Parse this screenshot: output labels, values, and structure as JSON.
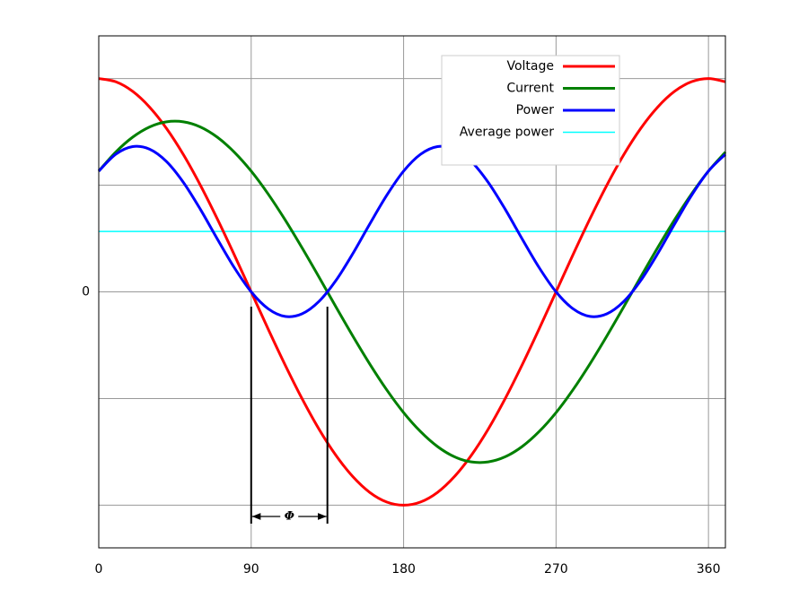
{
  "chart_data": {
    "type": "line",
    "x": [
      0,
      10,
      20,
      30,
      40,
      50,
      60,
      70,
      80,
      90,
      100,
      110,
      120,
      130,
      140,
      150,
      160,
      170,
      180,
      190,
      200,
      210,
      220,
      230,
      240,
      250,
      260,
      270,
      280,
      290,
      300,
      310,
      320,
      330,
      340,
      350,
      360,
      370
    ],
    "series": [
      {
        "name": "Voltage",
        "color": "#ff0000",
        "values": [
          1,
          0.985,
          0.94,
          0.866,
          0.766,
          0.643,
          0.5,
          0.342,
          0.174,
          0,
          -0.174,
          -0.342,
          -0.5,
          -0.643,
          -0.766,
          -0.866,
          -0.94,
          -0.985,
          -1,
          -0.985,
          -0.94,
          -0.866,
          -0.766,
          -0.643,
          -0.5,
          -0.342,
          -0.174,
          0,
          0.174,
          0.342,
          0.5,
          0.643,
          0.766,
          0.866,
          0.94,
          0.985,
          1,
          0.985
        ]
      },
      {
        "name": "Current",
        "color": "#008000",
        "values": [
          0.566,
          0.655,
          0.725,
          0.773,
          0.797,
          0.797,
          0.773,
          0.725,
          0.655,
          0.566,
          0.459,
          0.338,
          0.207,
          0.07,
          -0.07,
          -0.207,
          -0.338,
          -0.459,
          -0.566,
          -0.655,
          -0.725,
          -0.773,
          -0.797,
          -0.797,
          -0.773,
          -0.725,
          -0.655,
          -0.566,
          -0.459,
          -0.338,
          -0.207,
          -0.07,
          0.07,
          0.207,
          0.338,
          0.459,
          0.566,
          0.655
        ]
      },
      {
        "name": "Power",
        "color": "#0000ff",
        "values": [
          0.566,
          0.645,
          0.681,
          0.669,
          0.611,
          0.513,
          0.387,
          0.248,
          0.114,
          0,
          -0.079,
          -0.115,
          -0.103,
          -0.045,
          0.053,
          0.179,
          0.318,
          0.452,
          0.566,
          0.645,
          0.681,
          0.669,
          0.611,
          0.513,
          0.387,
          0.248,
          0.114,
          0,
          -0.079,
          -0.115,
          -0.103,
          -0.045,
          0.053,
          0.179,
          0.318,
          0.452,
          0.566,
          0.645
        ]
      },
      {
        "name": "Average power",
        "color": "#00ffff",
        "y": 0.283
      }
    ],
    "xlim": [
      0,
      370
    ],
    "ylim": [
      -1.2,
      1.2
    ],
    "xticks": [
      0,
      90,
      180,
      270,
      360
    ],
    "yticks": [
      0
    ],
    "ygrid": [
      -1,
      -0.5,
      0,
      0.5,
      1
    ],
    "grid": true,
    "legend": "upper right",
    "annotation": {
      "text": "Φ",
      "x": [
        90,
        135
      ]
    }
  }
}
